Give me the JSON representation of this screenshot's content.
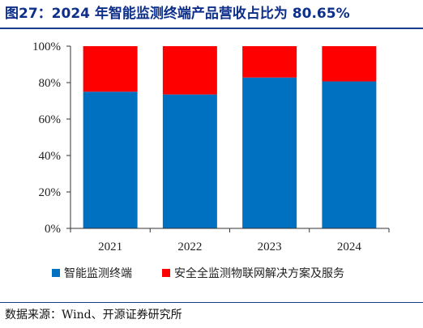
{
  "figure": {
    "title": "图27：2024 年智能监测终端产品营收占比为 80.65%",
    "source": "数据来源：Wind、开源证券研究所"
  },
  "chart_data": {
    "type": "bar",
    "stacked": true,
    "categories": [
      "2021",
      "2022",
      "2023",
      "2024"
    ],
    "series": [
      {
        "name": "智能监测终端",
        "color": "#0070c0",
        "values": [
          75.0,
          73.5,
          82.8,
          80.65
        ]
      },
      {
        "name": "安全全监测物联网解决方案及服务",
        "color": "#ff0000",
        "values": [
          25.0,
          26.5,
          17.2,
          19.35
        ]
      }
    ],
    "yticks": [
      "0%",
      "20%",
      "40%",
      "60%",
      "80%",
      "100%"
    ],
    "ylim": [
      0,
      100
    ],
    "grid": false,
    "legend_position": "bottom"
  }
}
